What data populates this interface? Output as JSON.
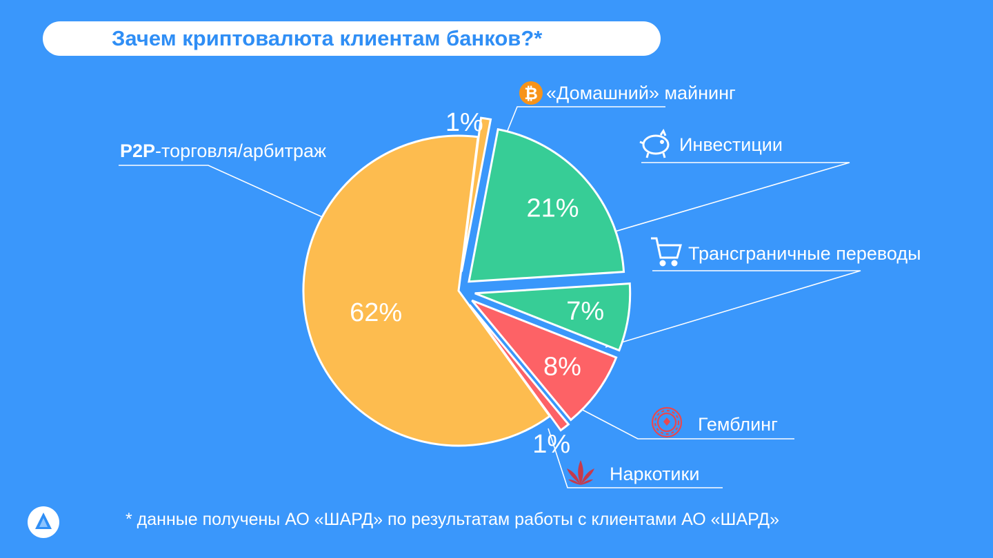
{
  "colors": {
    "background": "#3a97fb",
    "p2p": "#fdbc4f",
    "green": "#37cd96",
    "red": "#fd6266",
    "title": "#2f8ef5"
  },
  "header": {
    "title": "Зачем криптовалюта клиентам банков?*"
  },
  "labels": {
    "mining": "«Домашний» майнинг",
    "invest": "Инвестиции",
    "transfer": "Трансграничные переводы",
    "gambling": "Гемблинг",
    "drugs": "Наркотики",
    "p2p_bold": "P2P",
    "p2p_rest": "-торговля/арбитраж"
  },
  "icons": {
    "mining": "bitcoin-icon",
    "invest": "piggy-bank-icon",
    "transfer": "shopping-cart-icon",
    "gambling": "casino-chip-icon",
    "drugs": "cannabis-leaf-icon",
    "logo": "company-logo-icon"
  },
  "footer": {
    "note": "* данные получены АО «ШАРД» по результатам работы с клиентами АО «ШАРД»"
  },
  "chart_data": {
    "type": "pie",
    "title": "Зачем криптовалюта клиентам банков?*",
    "slices": [
      {
        "label": "P2P-торговля/арбитраж",
        "value": 62,
        "display": "62%",
        "color": "#fdbc4f"
      },
      {
        "label": "«Домашний» майнинг",
        "value": 1,
        "display": "1%",
        "color": "#fdbc4f"
      },
      {
        "label": "Инвестиции",
        "value": 21,
        "display": "21%",
        "color": "#37cd96"
      },
      {
        "label": "Трансграничные переводы",
        "value": 7,
        "display": "7%",
        "color": "#37cd96"
      },
      {
        "label": "Гемблинг",
        "value": 8,
        "display": "8%",
        "color": "#fd6266"
      },
      {
        "label": "Наркотики",
        "value": 1,
        "display": "1%",
        "color": "#fd6266"
      }
    ]
  }
}
